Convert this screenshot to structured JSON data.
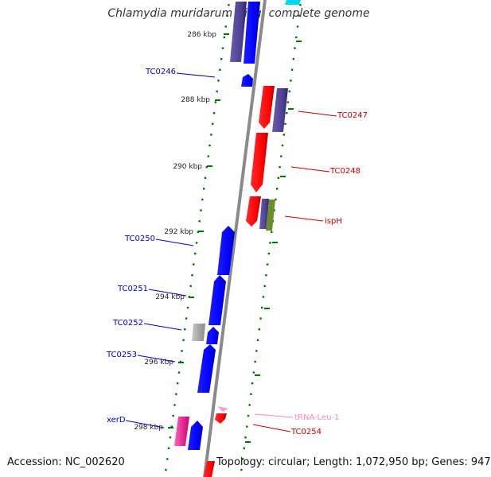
{
  "header": {
    "title": "Chlamydia muridarum Nigg, complete genome"
  },
  "footer": {
    "accession": "Accession: NC_002620",
    "summary": "Topology: circular; Length: 1,072,950 bp; Genes: 947"
  },
  "colors": {
    "forward_cds": "#ff0000",
    "reverse_cds": "#0000ff",
    "slate_feature": "#4b3d8f",
    "other_feature": "#9a9a9a",
    "trna": "#ff99cc",
    "olive_feature": "#6a8f2a",
    "magenta_feature": "#ff3399",
    "backbone": "#888888",
    "tick": "#007700"
  },
  "scale": {
    "ticks": [
      {
        "label": "286 kbp"
      },
      {
        "label": "288 kbp"
      },
      {
        "label": "290 kbp"
      },
      {
        "label": "292 kbp"
      },
      {
        "label": "294 kbp"
      },
      {
        "label": "296 kbp"
      },
      {
        "label": "298 kbp"
      }
    ]
  },
  "labels": {
    "left": [
      {
        "text": "TC0246",
        "color": "#0000cc"
      },
      {
        "text": "TC0250",
        "color": "#0000cc"
      },
      {
        "text": "TC0251",
        "color": "#0000cc"
      },
      {
        "text": "TC0252",
        "color": "#0000cc"
      },
      {
        "text": "TC0253",
        "color": "#0000cc"
      },
      {
        "text": "xerD",
        "color": "#0000cc"
      }
    ],
    "right": [
      {
        "text": "TC0247",
        "color": "#cc0000"
      },
      {
        "text": "TC0248",
        "color": "#cc0000"
      },
      {
        "text": "ispH",
        "color": "#cc0000"
      },
      {
        "text": "tRNA-Leu-1",
        "color": "#ff88bb"
      },
      {
        "text": "TC0254",
        "color": "#cc0000"
      }
    ]
  }
}
